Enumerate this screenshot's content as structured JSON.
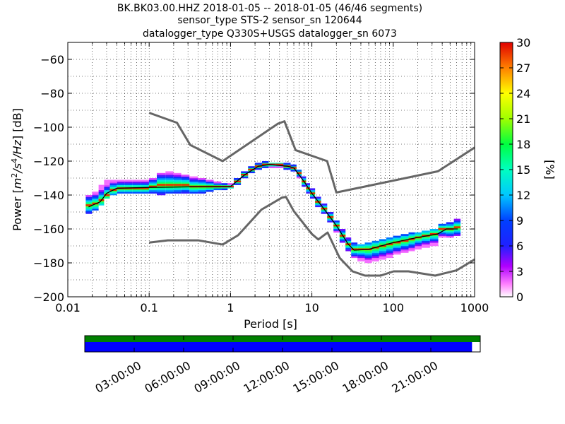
{
  "chart_data": [
    {
      "type": "heatmap",
      "title_lines": [
        "BK.BK03.00.HHZ   2018-01-05 -- 2018-01-05  (46/46 segments)",
        "sensor_type STS-2 sensor_sn 120644",
        "datalogger_type Q330S+USGS datalogger_sn 6073"
      ],
      "xlabel": "Period [s]",
      "ylabel": "Power [m²/s⁴/Hz] [dB]",
      "ylabel_parts": {
        "pre": "Power [",
        "m": "m",
        "e1": "2",
        "s": "/s",
        "e2": "4",
        "hz": "/Hz",
        "post": "] [dB]"
      },
      "x_scale": "log",
      "xlim": [
        0.01,
        1000
      ],
      "ylim": [
        -200,
        -50
      ],
      "x_ticks": [
        {
          "value": 0.01,
          "label": "0.01"
        },
        {
          "value": 0.1,
          "label": "0.1"
        },
        {
          "value": 1,
          "label": "1"
        },
        {
          "value": 10,
          "label": "10"
        },
        {
          "value": 100,
          "label": "100"
        },
        {
          "value": 1000,
          "label": "1000"
        }
      ],
      "y_ticks": [
        {
          "value": -60,
          "label": "−60"
        },
        {
          "value": -80,
          "label": "−80"
        },
        {
          "value": -100,
          "label": "−100"
        },
        {
          "value": -120,
          "label": "−120"
        },
        {
          "value": -140,
          "label": "−140"
        },
        {
          "value": -160,
          "label": "−160"
        },
        {
          "value": -180,
          "label": "−180"
        },
        {
          "value": -200,
          "label": "−200"
        }
      ],
      "grid": true,
      "colorbar": {
        "label": "[%]",
        "range": [
          0,
          30
        ],
        "ticks": [
          {
            "value": 0,
            "label": "0"
          },
          {
            "value": 3,
            "label": "3"
          },
          {
            "value": 6,
            "label": "6"
          },
          {
            "value": 9,
            "label": "9"
          },
          {
            "value": 12,
            "label": "12"
          },
          {
            "value": 15,
            "label": "15"
          },
          {
            "value": 18,
            "label": "18"
          },
          {
            "value": 21,
            "label": "21"
          },
          {
            "value": 24,
            "label": "24"
          },
          {
            "value": 27,
            "label": "27"
          },
          {
            "value": 30,
            "label": "30"
          }
        ]
      },
      "noise_models": [
        {
          "id": "high-noise-model",
          "points": [
            [
              0.1,
              -91.5
            ],
            [
              0.22,
              -97.4
            ],
            [
              0.32,
              -110.5
            ],
            [
              0.8,
              -120
            ],
            [
              3.8,
              -98
            ],
            [
              4.6,
              -96.5
            ],
            [
              6.3,
              -113.5
            ],
            [
              15.4,
              -120
            ],
            [
              20,
              -138.5
            ],
            [
              354.8,
              -126
            ],
            [
              1000,
              -112
            ]
          ]
        },
        {
          "id": "low-noise-model",
          "points": [
            [
              0.1,
              -168
            ],
            [
              0.17,
              -166.7
            ],
            [
              0.4,
              -166.7
            ],
            [
              0.8,
              -169.2
            ],
            [
              1.24,
              -163.7
            ],
            [
              2.4,
              -148.6
            ],
            [
              4.3,
              -141.5
            ],
            [
              4.8,
              -141.1
            ],
            [
              6,
              -149.5
            ],
            [
              10,
              -163
            ],
            [
              12,
              -166.2
            ],
            [
              15.6,
              -162.1
            ],
            [
              21.9,
              -177
            ],
            [
              31.6,
              -185
            ],
            [
              45,
              -187.5
            ],
            [
              70,
              -187.5
            ],
            [
              101,
              -185
            ],
            [
              154,
              -185
            ],
            [
              328,
              -187.5
            ],
            [
              600,
              -184.4
            ],
            [
              1000,
              -178
            ]
          ]
        }
      ],
      "density": [
        {
          "p": 0.018,
          "lo": -151,
          "hi": -140,
          "mode": -146
        },
        {
          "p": 0.022,
          "lo": -149,
          "hi": -138,
          "mode": -145
        },
        {
          "p": 0.026,
          "lo": -146,
          "hi": -134,
          "mode": -143
        },
        {
          "p": 0.03,
          "lo": -142,
          "hi": -131,
          "mode": -140
        },
        {
          "p": 0.036,
          "lo": -140,
          "hi": -131,
          "mode": -137
        },
        {
          "p": 0.045,
          "lo": -139,
          "hi": -131,
          "mode": -136
        },
        {
          "p": 0.055,
          "lo": -139,
          "hi": -131,
          "mode": -136
        },
        {
          "p": 0.07,
          "lo": -139,
          "hi": -131,
          "mode": -136
        },
        {
          "p": 0.09,
          "lo": -139,
          "hi": -131,
          "mode": -136
        },
        {
          "p": 0.11,
          "lo": -139,
          "hi": -130,
          "mode": -135
        },
        {
          "p": 0.14,
          "lo": -140,
          "hi": -127,
          "mode": -134
        },
        {
          "p": 0.18,
          "lo": -139,
          "hi": -126,
          "mode": -134
        },
        {
          "p": 0.22,
          "lo": -139,
          "hi": -127,
          "mode": -134
        },
        {
          "p": 0.28,
          "lo": -139,
          "hi": -128,
          "mode": -134
        },
        {
          "p": 0.35,
          "lo": -139,
          "hi": -129,
          "mode": -135
        },
        {
          "p": 0.45,
          "lo": -139,
          "hi": -130,
          "mode": -135
        },
        {
          "p": 0.55,
          "lo": -138,
          "hi": -131,
          "mode": -135
        },
        {
          "p": 0.7,
          "lo": -137,
          "hi": -132,
          "mode": -135
        },
        {
          "p": 0.85,
          "lo": -137,
          "hi": -133,
          "mode": -135
        },
        {
          "p": 1.0,
          "lo": -136,
          "hi": -133,
          "mode": -135
        },
        {
          "p": 1.2,
          "lo": -134,
          "hi": -130,
          "mode": -132
        },
        {
          "p": 1.5,
          "lo": -130,
          "hi": -126,
          "mode": -128
        },
        {
          "p": 1.8,
          "lo": -127,
          "hi": -123,
          "mode": -125
        },
        {
          "p": 2.2,
          "lo": -125,
          "hi": -121,
          "mode": -123
        },
        {
          "p": 2.7,
          "lo": -124,
          "hi": -120,
          "mode": -122
        },
        {
          "p": 3.2,
          "lo": -124,
          "hi": -121,
          "mode": -122
        },
        {
          "p": 4.0,
          "lo": -124,
          "hi": -121,
          "mode": -122
        },
        {
          "p": 5.0,
          "lo": -125,
          "hi": -121,
          "mode": -123
        },
        {
          "p": 6.0,
          "lo": -126,
          "hi": -122,
          "mode": -124
        },
        {
          "p": 7.0,
          "lo": -130,
          "hi": -125,
          "mode": -127
        },
        {
          "p": 8.0,
          "lo": -135,
          "hi": -129,
          "mode": -132
        },
        {
          "p": 9.0,
          "lo": -139,
          "hi": -133,
          "mode": -136
        },
        {
          "p": 10.0,
          "lo": -142,
          "hi": -136,
          "mode": -139
        },
        {
          "p": 12.0,
          "lo": -147,
          "hi": -141,
          "mode": -144
        },
        {
          "p": 14.0,
          "lo": -151,
          "hi": -145,
          "mode": -148
        },
        {
          "p": 17.0,
          "lo": -156,
          "hi": -150,
          "mode": -153
        },
        {
          "p": 20.0,
          "lo": -162,
          "hi": -155,
          "mode": -158
        },
        {
          "p": 24.0,
          "lo": -168,
          "hi": -160,
          "mode": -164
        },
        {
          "p": 28.0,
          "lo": -173,
          "hi": -165,
          "mode": -169
        },
        {
          "p": 33.0,
          "lo": -177,
          "hi": -168,
          "mode": -172
        },
        {
          "p": 40.0,
          "lo": -179,
          "hi": -169,
          "mode": -172
        },
        {
          "p": 50.0,
          "lo": -180,
          "hi": -168,
          "mode": -172
        },
        {
          "p": 60.0,
          "lo": -179,
          "hi": -167,
          "mode": -171
        },
        {
          "p": 75.0,
          "lo": -178,
          "hi": -166,
          "mode": -170
        },
        {
          "p": 90.0,
          "lo": -177,
          "hi": -165,
          "mode": -169
        },
        {
          "p": 110.0,
          "lo": -175,
          "hi": -164,
          "mode": -168
        },
        {
          "p": 140.0,
          "lo": -174,
          "hi": -163,
          "mode": -167
        },
        {
          "p": 170.0,
          "lo": -173,
          "hi": -162,
          "mode": -166
        },
        {
          "p": 200.0,
          "lo": -172,
          "hi": -162,
          "mode": -165
        },
        {
          "p": 250.0,
          "lo": -171,
          "hi": -161,
          "mode": -164
        },
        {
          "p": 320.0,
          "lo": -170,
          "hi": -160,
          "mode": -163
        },
        {
          "p": 400.0,
          "lo": -165,
          "hi": -157,
          "mode": -160
        },
        {
          "p": 500.0,
          "lo": -165,
          "hi": -156,
          "mode": -160
        },
        {
          "p": 620.0,
          "lo": -164,
          "hi": -154,
          "mode": -159
        }
      ],
      "mean_line": [
        [
          0.018,
          -147
        ],
        [
          0.025,
          -144
        ],
        [
          0.03,
          -139
        ],
        [
          0.04,
          -136
        ],
        [
          0.1,
          -135.5
        ],
        [
          0.5,
          -135
        ],
        [
          1.0,
          -135
        ],
        [
          1.5,
          -128
        ],
        [
          2.2,
          -123
        ],
        [
          3.0,
          -122
        ],
        [
          5.0,
          -123
        ],
        [
          6.0,
          -124
        ],
        [
          8.0,
          -132
        ],
        [
          10.0,
          -139
        ],
        [
          14.0,
          -148
        ],
        [
          20.0,
          -158
        ],
        [
          28.0,
          -169
        ],
        [
          33.0,
          -172.5
        ],
        [
          50.0,
          -172
        ],
        [
          100.0,
          -168
        ],
        [
          200.0,
          -165
        ],
        [
          350.0,
          -163
        ],
        [
          450.0,
          -160
        ],
        [
          620.0,
          -160
        ]
      ]
    },
    {
      "type": "timeline",
      "time_ticks": [
        {
          "value": 3,
          "label": "03:00:00"
        },
        {
          "value": 6,
          "label": "06:00:00"
        },
        {
          "value": 9,
          "label": "09:00:00"
        },
        {
          "value": 12,
          "label": "12:00:00"
        },
        {
          "value": 15,
          "label": "15:00:00"
        },
        {
          "value": 18,
          "label": "18:00:00"
        },
        {
          "value": 21,
          "label": "21:00:00"
        }
      ],
      "range_hours": [
        0,
        24
      ],
      "data_coverage_hours": [
        0,
        24
      ],
      "used_coverage_hours": [
        0,
        23.5
      ],
      "colors": {
        "coverage": "#008000",
        "used": "#0000ff"
      }
    }
  ]
}
